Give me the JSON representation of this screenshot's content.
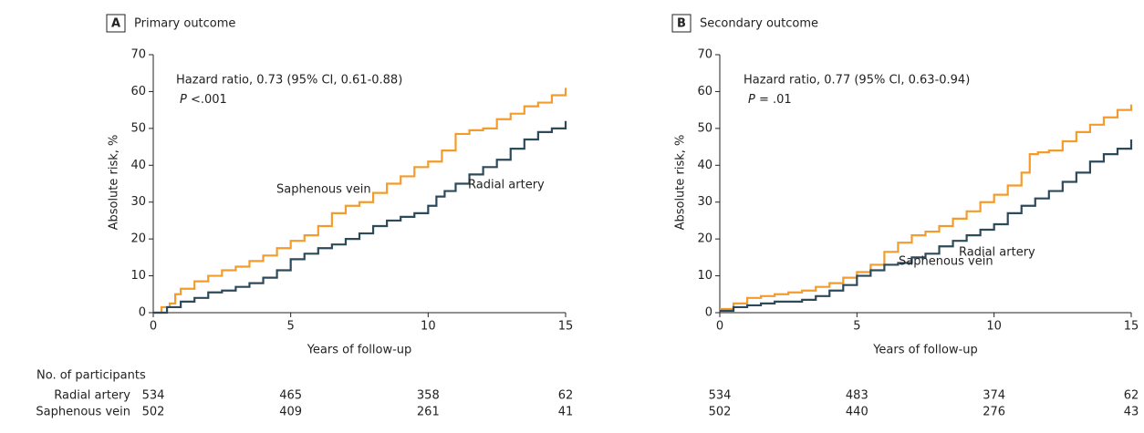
{
  "chart_data": [
    {
      "type": "line",
      "step": true,
      "panel_label": "A",
      "title": "Primary outcome",
      "xlabel": "Years of follow-up",
      "ylabel": "Absolute risk, %",
      "xlim": [
        0,
        15
      ],
      "ylim": [
        0,
        70
      ],
      "xticks": [
        0,
        5,
        10,
        15
      ],
      "yticks": [
        0,
        10,
        20,
        30,
        40,
        50,
        60,
        70
      ],
      "annotations": [
        "Hazard ratio, 0.73 (95% CI, 0.61-0.88)",
        "P <.001"
      ],
      "series": [
        {
          "name": "Saphenous vein",
          "color": "#f39c2b",
          "x": [
            0,
            0.3,
            0.6,
            0.8,
            1,
            1.5,
            2,
            2.5,
            3,
            3.5,
            4,
            4.5,
            5,
            5.5,
            6,
            6.5,
            7,
            7.5,
            8,
            8.5,
            9,
            9.5,
            10,
            10.5,
            11,
            11.5,
            12,
            12.5,
            13,
            13.5,
            14,
            14.5,
            15
          ],
          "values": [
            0,
            1.5,
            2.5,
            5,
            6.5,
            8.5,
            10,
            11.5,
            12.5,
            14,
            15.5,
            17.5,
            19.5,
            21,
            23.5,
            27,
            29,
            30,
            32.5,
            35,
            37,
            39.5,
            41,
            44,
            48.5,
            49.5,
            50,
            52.5,
            54,
            56,
            57,
            59,
            61
          ]
        },
        {
          "name": "Radial artery",
          "color": "#2c4a5a",
          "x": [
            0,
            0.5,
            1,
            1.5,
            2,
            2.5,
            3,
            3.5,
            4,
            4.5,
            5,
            5.5,
            6,
            6.5,
            7,
            7.5,
            8,
            8.5,
            9,
            9.5,
            10,
            10.3,
            10.6,
            11,
            11.5,
            12,
            12.5,
            13,
            13.5,
            14,
            14.5,
            15
          ],
          "values": [
            0,
            1.5,
            3,
            4,
            5.5,
            6,
            7,
            8,
            9.5,
            11.5,
            14.5,
            16,
            17.5,
            18.5,
            20,
            21.5,
            23.5,
            25,
            26,
            27,
            29,
            31.5,
            33,
            35,
            37.5,
            39.5,
            41.5,
            44.5,
            47,
            49,
            50,
            52
          ]
        }
      ],
      "at_risk": {
        "title": "No. of participants",
        "rows": [
          {
            "name": "Radial artery",
            "values": [
              534,
              465,
              358,
              62
            ]
          },
          {
            "name": "Saphenous vein",
            "values": [
              502,
              409,
              261,
              41
            ]
          }
        ]
      }
    },
    {
      "type": "line",
      "step": true,
      "panel_label": "B",
      "title": "Secondary outcome",
      "xlabel": "Years of follow-up",
      "ylabel": "Absolute risk, %",
      "xlim": [
        0,
        15
      ],
      "ylim": [
        0,
        70
      ],
      "xticks": [
        0,
        5,
        10,
        15
      ],
      "yticks": [
        0,
        10,
        20,
        30,
        40,
        50,
        60,
        70
      ],
      "annotations": [
        "Hazard ratio, 0.77 (95% CI, 0.63-0.94)",
        "P = .01"
      ],
      "series": [
        {
          "name": "Saphenous vein",
          "color": "#f39c2b",
          "x": [
            0,
            0.5,
            1,
            1.5,
            2,
            2.5,
            3,
            3.5,
            4,
            4.5,
            5,
            5.5,
            6,
            6.5,
            7,
            7.5,
            8,
            8.5,
            9,
            9.5,
            10,
            10.5,
            11,
            11.3,
            11.6,
            12,
            12.5,
            13,
            13.5,
            14,
            14.5,
            15
          ],
          "values": [
            1,
            2.5,
            4,
            4.5,
            5,
            5.5,
            6,
            7,
            8,
            9.5,
            11,
            13,
            16.5,
            19,
            21,
            22,
            23.5,
            25.5,
            27.5,
            30,
            32,
            34.5,
            38,
            43,
            43.5,
            44,
            46.5,
            49,
            51,
            53,
            55,
            56.5
          ]
        },
        {
          "name": "Radial artery",
          "color": "#2c4a5a",
          "x": [
            0,
            0.5,
            1,
            1.5,
            2,
            2.5,
            3,
            3.5,
            4,
            4.5,
            5,
            5.5,
            6,
            6.5,
            7,
            7.5,
            8,
            8.5,
            9,
            9.5,
            10,
            10.5,
            11,
            11.5,
            12,
            12.5,
            13,
            13.5,
            14,
            14.5,
            15
          ],
          "values": [
            0.5,
            1.5,
            2,
            2.5,
            3,
            3,
            3.5,
            4.5,
            6,
            7.5,
            10,
            11.5,
            13,
            13.5,
            15,
            16,
            18,
            19.5,
            21,
            22.5,
            24,
            27,
            29,
            31,
            33,
            35.5,
            38,
            41,
            43,
            44.5,
            47
          ]
        }
      ],
      "at_risk": {
        "rows": [
          {
            "values": [
              534,
              483,
              374,
              62
            ]
          },
          {
            "values": [
              502,
              440,
              276,
              43
            ]
          }
        ]
      }
    }
  ]
}
